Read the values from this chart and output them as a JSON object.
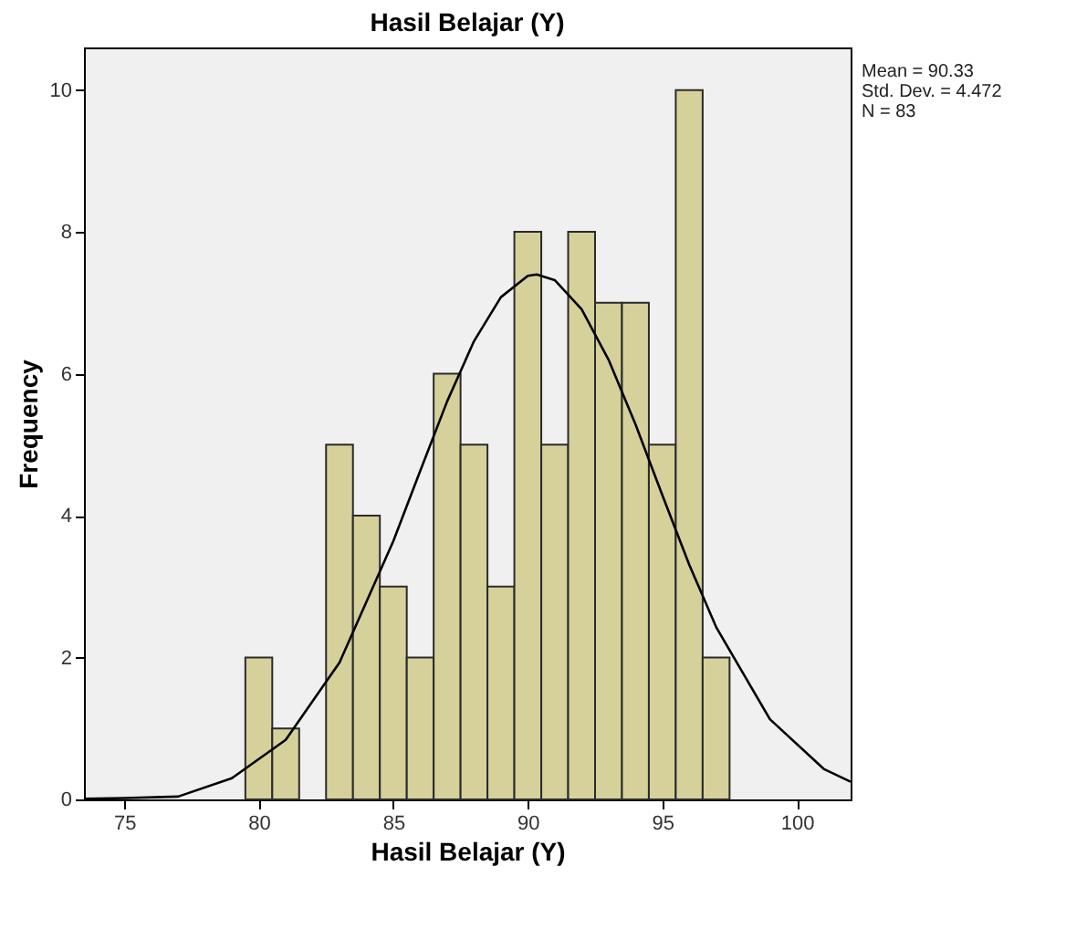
{
  "chart_data": {
    "type": "histogram",
    "title": "Hasil Belajar (Y)",
    "xlabel": "Hasil Belajar (Y)",
    "ylabel": "Frequency",
    "annotations": [
      "Mean = 90.33",
      "Std. Dev. = 4.472",
      "N = 83"
    ],
    "series": [
      {
        "color": "#d6d19b",
        "bins": [
          79.5,
          80.5,
          81.5,
          82.5,
          83.5,
          84.5,
          85.5,
          86.5,
          87.5,
          88.5,
          89.5,
          90.5,
          91.5,
          92.5,
          93.5,
          94.5,
          95.5,
          96.5,
          97.5
        ],
        "values": [
          2,
          1,
          0,
          5,
          4,
          3,
          2,
          6,
          5,
          3,
          8,
          5,
          8,
          7,
          7,
          5,
          10,
          2
        ]
      },
      {
        "type": "line",
        "color": "#000000",
        "x": [
          73.5,
          75,
          77,
          79,
          81,
          83,
          85,
          86,
          87,
          88,
          89,
          90,
          90.33,
          91,
          92,
          93,
          94,
          95,
          96,
          97,
          99,
          101,
          102
        ],
        "values": [
          0.01,
          0.02,
          0.04,
          0.3,
          0.84,
          1.93,
          3.64,
          4.63,
          5.61,
          6.46,
          7.08,
          7.38,
          7.4,
          7.32,
          6.91,
          6.2,
          5.29,
          4.29,
          3.31,
          2.43,
          1.13,
          0.43,
          0.25
        ]
      }
    ],
    "xlim": [
      73.5,
      102
    ],
    "xticks": [
      75,
      80,
      85,
      90,
      95,
      100
    ],
    "ylim": [
      0,
      10.6
    ],
    "yticks": [
      0,
      2,
      4,
      6,
      8,
      10
    ],
    "grid": false
  }
}
